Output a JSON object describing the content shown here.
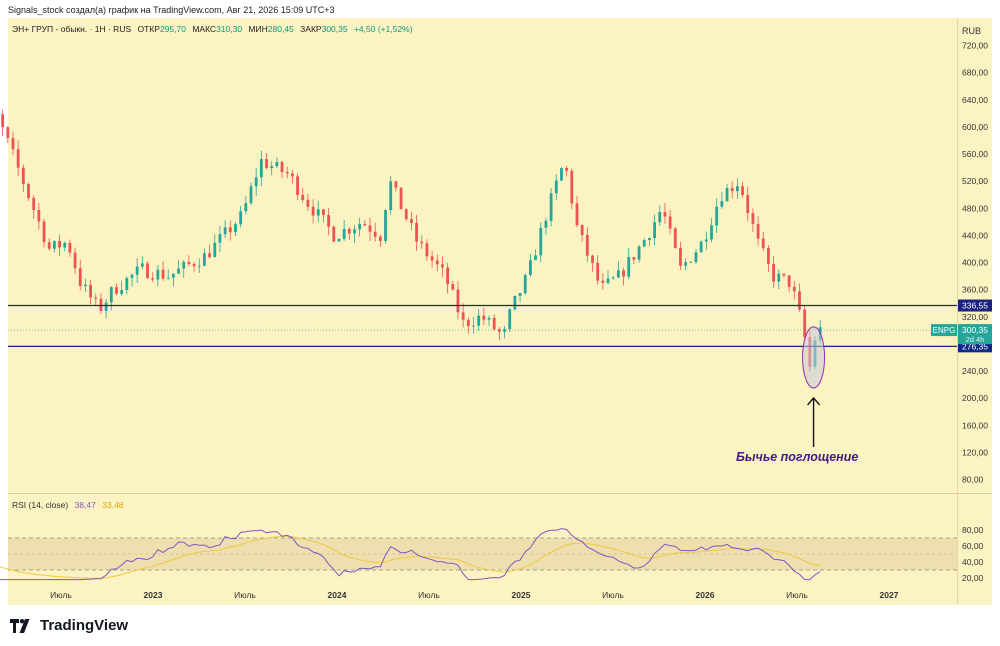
{
  "header": {
    "attribution": "Signals_stock создал(а) график на TradingView.com, Авг 21, 2026 15:09 UTC+3"
  },
  "legend": {
    "ticker": "ЭН+ ГРУП - обыкн. · 1Н · RUS",
    "open_label": "ОТКР",
    "open": "295,70",
    "high_label": "МАКС",
    "high": "310,30",
    "low_label": "МИН",
    "low": "280,45",
    "close_label": "ЗАКР",
    "close": "300,35",
    "change": "+4,50 (+1,52%)"
  },
  "logo": {
    "text": "TradingView"
  },
  "annotation": {
    "text": "Бычье поглощение"
  },
  "colors": {
    "background": "#fcf3c2",
    "up": "#26a69a",
    "down": "#ef5350",
    "level_line": "#1a237e",
    "rsi": "#7e57c2",
    "rsi_ma": "#f2c744",
    "badge_price": "#26a69a"
  },
  "chart_data": [
    {
      "type": "candlestick",
      "currency": "RUB",
      "ylim": [
        80,
        780
      ],
      "y_ticks": [
        "720,00",
        "680,00",
        "640,00",
        "600,00",
        "560,00",
        "520,00",
        "480,00",
        "440,00",
        "400,00",
        "360,00",
        "320,00",
        "280,00",
        "240,00",
        "200,00",
        "160,00",
        "120,00",
        "80,00"
      ],
      "x_ticks": [
        "Июль",
        "2023",
        "Июль",
        "2024",
        "Июль",
        "2025",
        "Июль",
        "2026",
        "Июль",
        "2027"
      ],
      "anchors": [
        {
          "t": 2022.0,
          "v": 760
        },
        {
          "t": 2022.1,
          "v": 660
        },
        {
          "t": 2022.25,
          "v": 560
        },
        {
          "t": 2022.45,
          "v": 420
        },
        {
          "t": 2022.55,
          "v": 430
        },
        {
          "t": 2022.62,
          "v": 370
        },
        {
          "t": 2022.72,
          "v": 330
        },
        {
          "t": 2022.8,
          "v": 360
        },
        {
          "t": 2022.95,
          "v": 390
        },
        {
          "t": 2023.1,
          "v": 380
        },
        {
          "t": 2023.3,
          "v": 410
        },
        {
          "t": 2023.5,
          "v": 470
        },
        {
          "t": 2023.6,
          "v": 550
        },
        {
          "t": 2023.75,
          "v": 530
        },
        {
          "t": 2023.85,
          "v": 490
        },
        {
          "t": 2024.0,
          "v": 440
        },
        {
          "t": 2024.15,
          "v": 460
        },
        {
          "t": 2024.25,
          "v": 440
        },
        {
          "t": 2024.3,
          "v": 520
        },
        {
          "t": 2024.45,
          "v": 430
        },
        {
          "t": 2024.6,
          "v": 380
        },
        {
          "t": 2024.7,
          "v": 310
        },
        {
          "t": 2024.8,
          "v": 320
        },
        {
          "t": 2024.92,
          "v": 290
        },
        {
          "t": 2024.96,
          "v": 330
        },
        {
          "t": 2025.05,
          "v": 380
        },
        {
          "t": 2025.15,
          "v": 470
        },
        {
          "t": 2025.25,
          "v": 550
        },
        {
          "t": 2025.32,
          "v": 450
        },
        {
          "t": 2025.45,
          "v": 360
        },
        {
          "t": 2025.55,
          "v": 380
        },
        {
          "t": 2025.7,
          "v": 440
        },
        {
          "t": 2025.78,
          "v": 480
        },
        {
          "t": 2025.88,
          "v": 390
        },
        {
          "t": 2026.0,
          "v": 430
        },
        {
          "t": 2026.1,
          "v": 500
        },
        {
          "t": 2026.2,
          "v": 520
        },
        {
          "t": 2026.3,
          "v": 430
        },
        {
          "t": 2026.38,
          "v": 380
        },
        {
          "t": 2026.48,
          "v": 370
        },
        {
          "t": 2026.55,
          "v": 300
        },
        {
          "t": 2026.58,
          "v": 240
        },
        {
          "t": 2026.62,
          "v": 300
        },
        {
          "t": 2026.64,
          "v": 300
        }
      ],
      "levels": [
        {
          "value": 336.55,
          "label": "336,55"
        },
        {
          "value": 276.35,
          "label": "276,35"
        }
      ],
      "current_price": {
        "value": 300.35,
        "label": "300,35",
        "ticker": "ENPG",
        "countdown": "2d 4h"
      },
      "highlight": {
        "t": 2026.59,
        "low": 215,
        "high": 305
      }
    },
    {
      "type": "line",
      "title": "RSI (14, close)",
      "value_rsi": "38,47",
      "value_ma": "33,48",
      "ylim": [
        10,
        90
      ],
      "y_ticks": [
        "80,00",
        "60,00",
        "40,00",
        "20,00"
      ],
      "bands": [
        30,
        70
      ]
    }
  ]
}
